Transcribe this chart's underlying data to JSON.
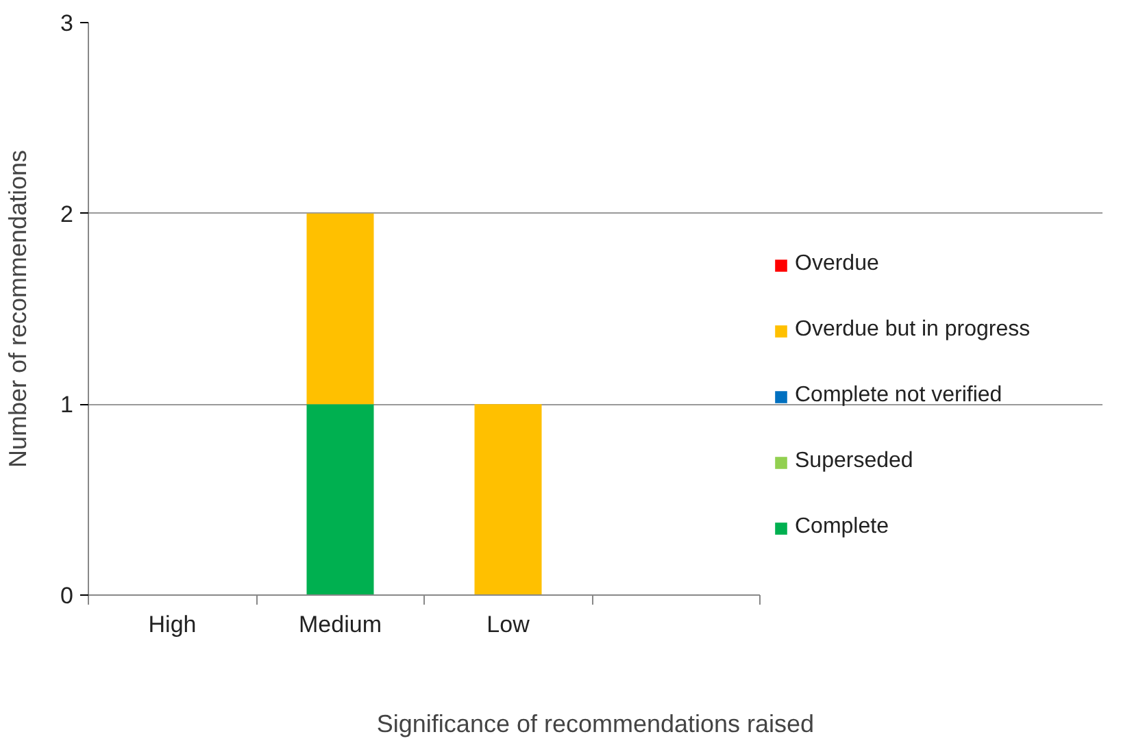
{
  "chart_data": {
    "type": "bar",
    "stacked": true,
    "xlabel": "Significance of recommendations raised",
    "ylabel": "Number of recommendations",
    "categories": [
      "High",
      "Medium",
      "Low",
      null
    ],
    "series": [
      {
        "name": "Complete",
        "color": "#00b050",
        "values": [
          0,
          1,
          0,
          0
        ]
      },
      {
        "name": "Superseded",
        "color": "#92d050",
        "values": [
          0,
          0,
          0,
          0
        ]
      },
      {
        "name": "Complete not verified",
        "color": "#0070c0",
        "values": [
          0,
          0,
          0,
          0
        ]
      },
      {
        "name": "Overdue but in progress",
        "color": "#ffc000",
        "values": [
          0,
          1,
          1,
          0
        ]
      },
      {
        "name": "Overdue",
        "color": "#ff0000",
        "values": [
          0,
          0,
          0,
          0
        ]
      }
    ],
    "ylim": [
      0,
      3
    ],
    "yticks": [
      0,
      1,
      2,
      3
    ],
    "grid": "y",
    "legend": "right"
  }
}
